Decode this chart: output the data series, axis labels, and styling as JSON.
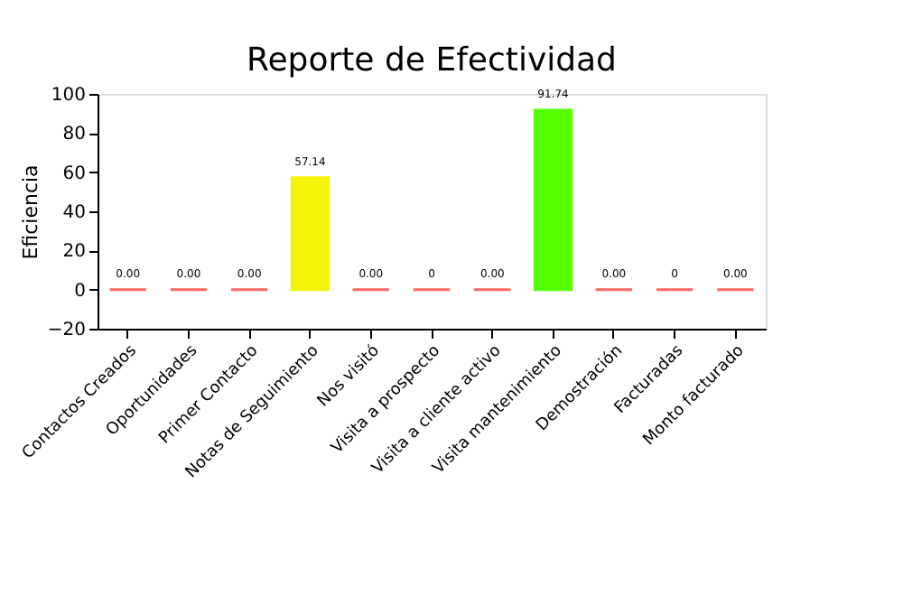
{
  "chart_data": {
    "type": "bar",
    "title": "Reporte de Efectividad",
    "ylabel": "Eficiencia",
    "categories": [
      "Contactos Creados",
      "Oportunidades",
      "Primer Contacto",
      "Notas de Seguimiento",
      "Nos visitó",
      "Visita a prospecto",
      "Visita a cliente activo",
      "Visita mantenimiento",
      "Demostración",
      "Facturadas",
      "Monto facturado"
    ],
    "values": [
      0,
      0,
      0,
      57.14,
      0,
      0,
      0,
      91.74,
      0,
      0,
      0
    ],
    "colors": [
      "#ff6666",
      "#ff6666",
      "#ff6666",
      "#f5f50a",
      "#ff6666",
      "#ff6666",
      "#ff6666",
      "#55ff00",
      "#ff6666",
      "#ff6666",
      "#ff6666"
    ],
    "value_labels": [
      "0.00",
      "0.00",
      "0.00",
      "57.14",
      "0.00",
      "0",
      "0.00",
      "91.74",
      "0.00",
      "0",
      "0.00"
    ],
    "ylim": [
      -20,
      100
    ],
    "yticks": [
      -20,
      0,
      20,
      40,
      60,
      80,
      100
    ],
    "grid": false
  }
}
